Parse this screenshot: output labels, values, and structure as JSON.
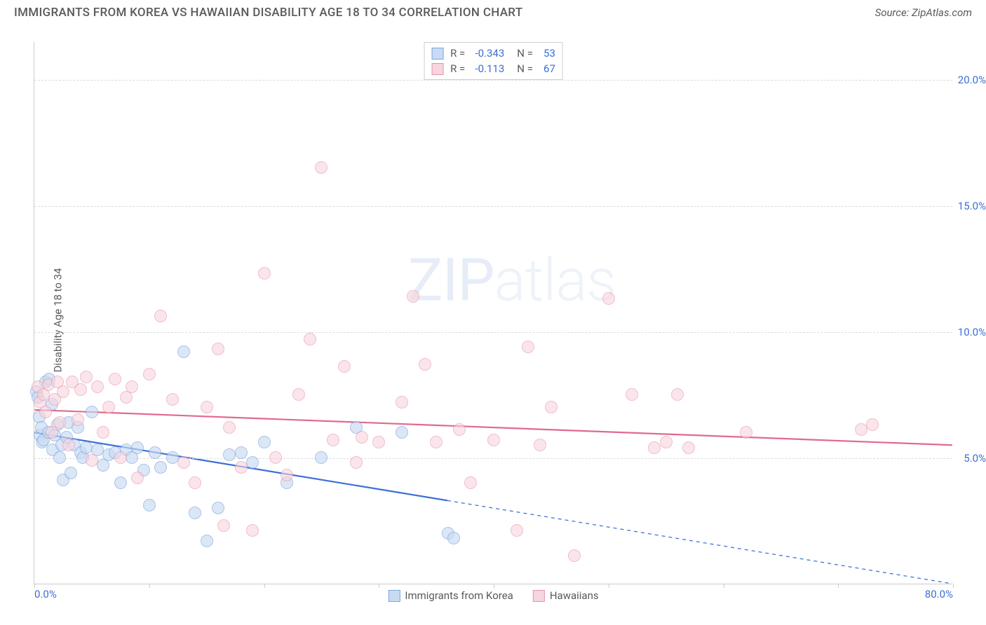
{
  "header": {
    "title": "IMMIGRANTS FROM KOREA VS HAWAIIAN DISABILITY AGE 18 TO 34 CORRELATION CHART",
    "source_prefix": "Source: ",
    "source_name": "ZipAtlas.com"
  },
  "watermark": {
    "bold": "ZIP",
    "light": "atlas"
  },
  "chart": {
    "type": "scatter",
    "y_axis_label": "Disability Age 18 to 34",
    "background_color": "#ffffff",
    "grid_color": "#dcdcdc",
    "axis_color": "#cccccc",
    "tick_color": "#3b6fd6",
    "label_color": "#5a5a5a",
    "xlim": [
      0,
      80
    ],
    "ylim": [
      0,
      21.5
    ],
    "x_ticks": [
      0,
      10,
      20,
      30,
      40,
      50,
      60,
      70,
      80
    ],
    "x_tick_labels": {
      "0": "0.0%",
      "80": "80.0%"
    },
    "y_ticks": [
      5,
      10,
      15,
      20
    ],
    "y_tick_labels": {
      "5": "5.0%",
      "10": "10.0%",
      "15": "15.0%",
      "20": "20.0%"
    },
    "marker_radius": 9,
    "marker_stroke_width": 1.5,
    "series": [
      {
        "name": "Immigrants from Korea",
        "fill": "#c9dbf2",
        "stroke": "#7ba6df",
        "fill_opacity": 0.65,
        "stats": {
          "R": "-0.343",
          "N": "53"
        },
        "trend": {
          "x1": 0,
          "y1": 6.0,
          "x2": 36,
          "y2": 3.3,
          "solid_end_x": 36,
          "dash_to_x": 80,
          "dash_y2": 0.0,
          "color": "#3b6fd6",
          "width": 2.2
        },
        "points": [
          [
            0.2,
            7.6
          ],
          [
            0.3,
            7.4
          ],
          [
            0.4,
            6.6
          ],
          [
            0.5,
            5.9
          ],
          [
            0.6,
            6.2
          ],
          [
            0.7,
            5.6
          ],
          [
            0.8,
            5.7
          ],
          [
            1.0,
            8.0
          ],
          [
            1.2,
            6.0
          ],
          [
            1.3,
            8.1
          ],
          [
            1.5,
            7.1
          ],
          [
            1.6,
            5.3
          ],
          [
            1.8,
            5.9
          ],
          [
            2.0,
            6.3
          ],
          [
            2.2,
            5.0
          ],
          [
            2.4,
            5.5
          ],
          [
            2.5,
            4.1
          ],
          [
            2.8,
            5.8
          ],
          [
            3.0,
            6.4
          ],
          [
            3.2,
            4.4
          ],
          [
            3.5,
            5.5
          ],
          [
            3.8,
            6.2
          ],
          [
            4.0,
            5.2
          ],
          [
            4.2,
            5.0
          ],
          [
            4.5,
            5.4
          ],
          [
            5.0,
            6.8
          ],
          [
            5.5,
            5.3
          ],
          [
            6.0,
            4.7
          ],
          [
            6.5,
            5.1
          ],
          [
            7.0,
            5.2
          ],
          [
            7.5,
            4.0
          ],
          [
            8.0,
            5.3
          ],
          [
            8.5,
            5.0
          ],
          [
            9.0,
            5.4
          ],
          [
            9.5,
            4.5
          ],
          [
            10.0,
            3.1
          ],
          [
            10.5,
            5.2
          ],
          [
            11.0,
            4.6
          ],
          [
            12.0,
            5.0
          ],
          [
            13.0,
            9.2
          ],
          [
            14.0,
            2.8
          ],
          [
            15.0,
            1.7
          ],
          [
            16.0,
            3.0
          ],
          [
            17.0,
            5.1
          ],
          [
            18.0,
            5.2
          ],
          [
            19.0,
            4.8
          ],
          [
            20.0,
            5.6
          ],
          [
            22.0,
            4.0
          ],
          [
            25.0,
            5.0
          ],
          [
            28.0,
            6.2
          ],
          [
            32.0,
            6.0
          ],
          [
            36.0,
            2.0
          ],
          [
            36.5,
            1.8
          ]
        ]
      },
      {
        "name": "Hawaiians",
        "fill": "#f7d5de",
        "stroke": "#e893aa",
        "fill_opacity": 0.6,
        "stats": {
          "R": "-0.113",
          "N": "67"
        },
        "trend": {
          "x1": 0,
          "y1": 6.9,
          "x2": 80,
          "y2": 5.5,
          "solid_end_x": 80,
          "color": "#e06a8c",
          "width": 2.2
        },
        "points": [
          [
            0.3,
            7.8
          ],
          [
            0.5,
            7.2
          ],
          [
            0.8,
            7.5
          ],
          [
            1.0,
            6.8
          ],
          [
            1.2,
            7.9
          ],
          [
            1.5,
            6.0
          ],
          [
            1.8,
            7.3
          ],
          [
            2.0,
            8.0
          ],
          [
            2.2,
            6.4
          ],
          [
            2.5,
            7.6
          ],
          [
            3.0,
            5.5
          ],
          [
            3.3,
            8.0
          ],
          [
            3.8,
            6.5
          ],
          [
            4.0,
            7.7
          ],
          [
            4.5,
            8.2
          ],
          [
            5.0,
            4.9
          ],
          [
            5.5,
            7.8
          ],
          [
            6.0,
            6.0
          ],
          [
            6.5,
            7.0
          ],
          [
            7.0,
            8.1
          ],
          [
            7.5,
            5.0
          ],
          [
            8.0,
            7.4
          ],
          [
            8.5,
            7.8
          ],
          [
            9.0,
            4.2
          ],
          [
            10.0,
            8.3
          ],
          [
            11.0,
            10.6
          ],
          [
            12.0,
            7.3
          ],
          [
            13.0,
            4.8
          ],
          [
            14.0,
            4.0
          ],
          [
            15.0,
            7.0
          ],
          [
            16.0,
            9.3
          ],
          [
            16.5,
            2.3
          ],
          [
            17.0,
            6.2
          ],
          [
            18.0,
            4.6
          ],
          [
            19.0,
            2.1
          ],
          [
            20.0,
            12.3
          ],
          [
            21.0,
            5.0
          ],
          [
            22.0,
            4.3
          ],
          [
            23.0,
            7.5
          ],
          [
            24.0,
            9.7
          ],
          [
            25.0,
            16.5
          ],
          [
            26.0,
            5.7
          ],
          [
            27.0,
            8.6
          ],
          [
            28.0,
            4.8
          ],
          [
            30.0,
            5.6
          ],
          [
            32.0,
            7.2
          ],
          [
            33.0,
            11.4
          ],
          [
            34.0,
            8.7
          ],
          [
            35.0,
            5.6
          ],
          [
            37.0,
            6.1
          ],
          [
            38.0,
            4.0
          ],
          [
            40.0,
            5.7
          ],
          [
            42.0,
            2.1
          ],
          [
            43.0,
            9.4
          ],
          [
            44.0,
            5.5
          ],
          [
            45.0,
            7.0
          ],
          [
            47.0,
            1.1
          ],
          [
            50.0,
            11.3
          ],
          [
            52.0,
            7.5
          ],
          [
            54.0,
            5.4
          ],
          [
            55.0,
            5.6
          ],
          [
            56.0,
            7.5
          ],
          [
            57.0,
            5.4
          ],
          [
            62.0,
            6.0
          ],
          [
            72.0,
            6.1
          ],
          [
            73.0,
            6.3
          ],
          [
            28.5,
            5.8
          ]
        ]
      }
    ],
    "bottom_legend": [
      {
        "label": "Immigrants from Korea",
        "fill": "#c9dbf2",
        "stroke": "#7ba6df"
      },
      {
        "label": "Hawaiians",
        "fill": "#f7d5de",
        "stroke": "#e893aa"
      }
    ]
  }
}
